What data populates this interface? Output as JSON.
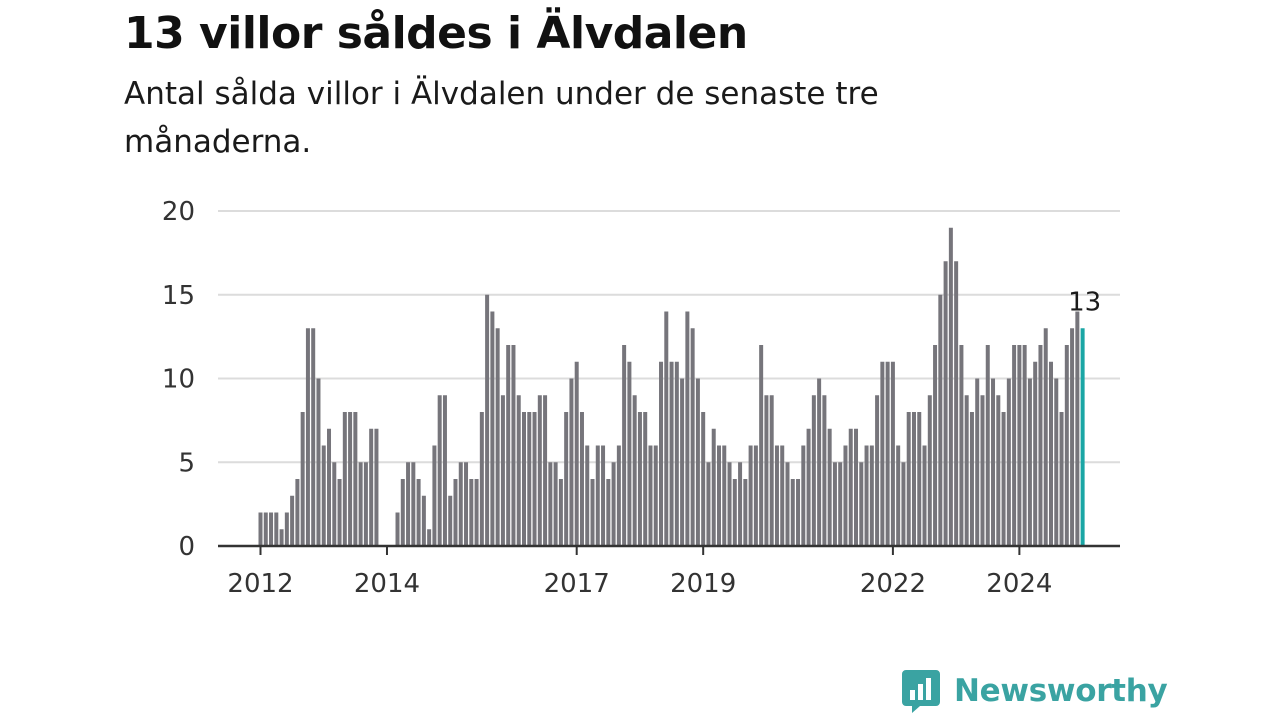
{
  "header": {
    "title": "13 villor såldes i Älvdalen",
    "subtitle": "Antal sålda villor i Älvdalen under de senaste tre månaderna."
  },
  "brand": {
    "name": "Newsworthy",
    "icon": "bar-chart-bubble-icon",
    "color": "#3aa3a2"
  },
  "colors": {
    "bar": "#76757b",
    "highlight": "#1aa6a5",
    "grid": "#dcdcdc",
    "axis": "#333333"
  },
  "chart_data": {
    "type": "bar",
    "title": "13 villor såldes i Älvdalen",
    "subtitle": "Antal sålda villor i Älvdalen under de senaste tre månaderna.",
    "xlabel": "",
    "ylabel": "",
    "ylim": [
      0,
      20
    ],
    "yticks": [
      0,
      5,
      10,
      15,
      20
    ],
    "grid": true,
    "x_tick_labels": [
      {
        "label": "2012",
        "index": 0
      },
      {
        "label": "2014",
        "index": 24
      },
      {
        "label": "2017",
        "index": 60
      },
      {
        "label": "2019",
        "index": 84
      },
      {
        "label": "2022",
        "index": 120
      },
      {
        "label": "2024",
        "index": 144
      }
    ],
    "values": [
      2,
      2,
      2,
      2,
      1,
      2,
      3,
      4,
      8,
      13,
      13,
      10,
      6,
      7,
      5,
      4,
      8,
      8,
      8,
      5,
      5,
      7,
      7,
      0,
      0,
      0,
      2,
      4,
      5,
      5,
      4,
      3,
      1,
      6,
      9,
      9,
      3,
      4,
      5,
      5,
      4,
      4,
      8,
      15,
      14,
      13,
      9,
      12,
      12,
      9,
      8,
      8,
      8,
      9,
      9,
      5,
      5,
      4,
      8,
      10,
      11,
      8,
      6,
      4,
      6,
      6,
      4,
      5,
      6,
      12,
      11,
      9,
      8,
      8,
      6,
      6,
      11,
      14,
      11,
      11,
      10,
      14,
      13,
      10,
      8,
      5,
      7,
      6,
      6,
      5,
      4,
      5,
      4,
      6,
      6,
      12,
      9,
      9,
      6,
      6,
      5,
      4,
      4,
      6,
      7,
      9,
      10,
      9,
      7,
      5,
      5,
      6,
      7,
      7,
      5,
      6,
      6,
      9,
      11,
      11,
      11,
      6,
      5,
      8,
      8,
      8,
      6,
      9,
      12,
      15,
      17,
      19,
      17,
      12,
      9,
      8,
      10,
      9,
      12,
      10,
      9,
      8,
      10,
      12,
      12,
      12,
      10,
      11,
      12,
      13,
      11,
      10,
      8,
      12,
      13,
      14,
      13
    ],
    "highlight_last": true,
    "last_value_label": "13"
  }
}
